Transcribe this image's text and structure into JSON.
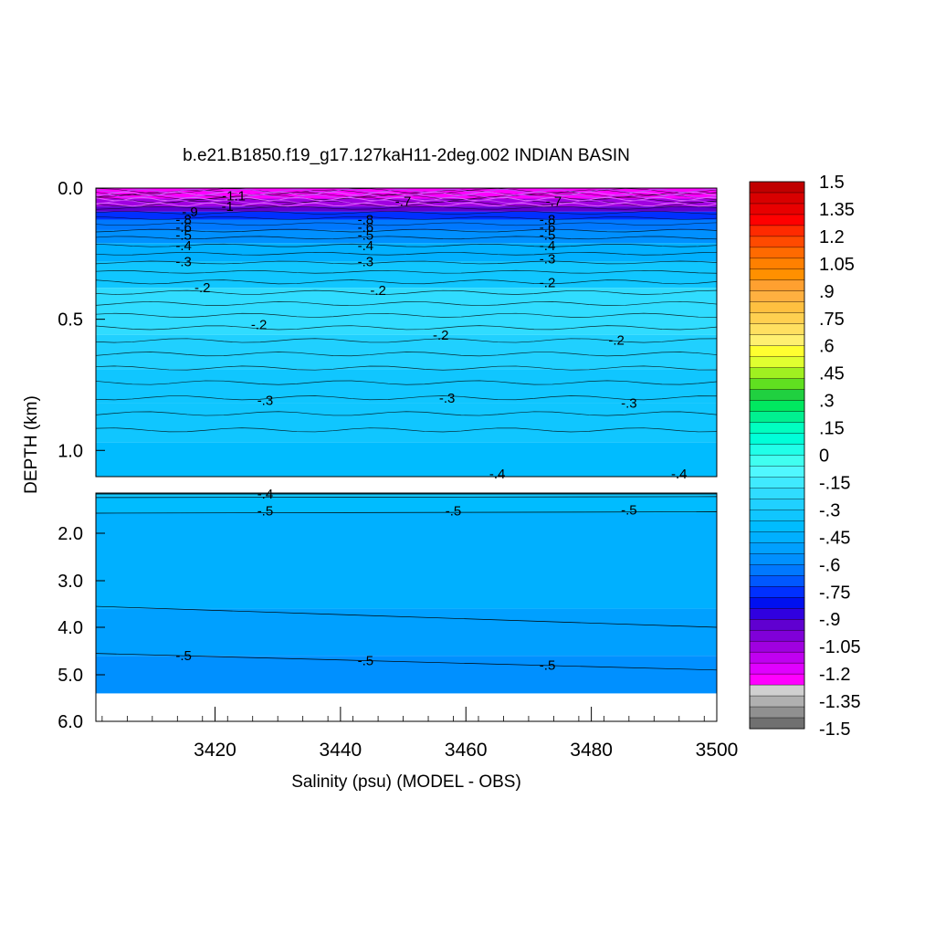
{
  "chart_data": {
    "type": "heatmap",
    "title": "b.e21.B1850.f19_g17.127kaH11-2deg.002 INDIAN BASIN",
    "xlabel": "Salinity (psu) (MODEL - OBS)",
    "ylabel": "DEPTH (km)",
    "xlim": [
      3401,
      3500
    ],
    "x_ticks": [
      "3420",
      "3440",
      "3460",
      "3480",
      "3500"
    ],
    "upper_panel": {
      "ylim": [
        0.0,
        1.1
      ],
      "y_ticks": [
        "0.0",
        "0.5",
        "1.0"
      ],
      "depth_bands": [
        {
          "depth": 0.0,
          "value": -1.2
        },
        {
          "depth": 0.04,
          "value": -1.05
        },
        {
          "depth": 0.07,
          "value": -0.9
        },
        {
          "depth": 0.09,
          "value": -0.75
        },
        {
          "depth": 0.12,
          "value": -0.65
        },
        {
          "depth": 0.16,
          "value": -0.55
        },
        {
          "depth": 0.21,
          "value": -0.45
        },
        {
          "depth": 0.28,
          "value": -0.3
        },
        {
          "depth": 0.38,
          "value": -0.2
        },
        {
          "depth": 0.56,
          "value": -0.25
        },
        {
          "depth": 0.69,
          "value": -0.3
        },
        {
          "depth": 0.82,
          "value": -0.35
        },
        {
          "depth": 0.97,
          "value": -0.4
        }
      ],
      "contour_labels": [
        {
          "text": "-1.1",
          "x": 3423,
          "depth": 0.03
        },
        {
          "text": "-1",
          "x": 3422,
          "depth": 0.07
        },
        {
          "text": "-.9",
          "x": 3416,
          "depth": 0.09
        },
        {
          "text": "-.7",
          "x": 3450,
          "depth": 0.05
        },
        {
          "text": "-.7",
          "x": 3474,
          "depth": 0.05
        },
        {
          "text": "-.8",
          "x": 3415,
          "depth": 0.12
        },
        {
          "text": "-.8",
          "x": 3444,
          "depth": 0.12
        },
        {
          "text": "-.8",
          "x": 3473,
          "depth": 0.12
        },
        {
          "text": "-.6",
          "x": 3415,
          "depth": 0.15
        },
        {
          "text": "-.6",
          "x": 3444,
          "depth": 0.15
        },
        {
          "text": "-.6",
          "x": 3473,
          "depth": 0.15
        },
        {
          "text": "-.5",
          "x": 3415,
          "depth": 0.18
        },
        {
          "text": "-.5",
          "x": 3444,
          "depth": 0.18
        },
        {
          "text": "-.5",
          "x": 3473,
          "depth": 0.18
        },
        {
          "text": "-.4",
          "x": 3415,
          "depth": 0.22
        },
        {
          "text": "-.4",
          "x": 3444,
          "depth": 0.22
        },
        {
          "text": "-.4",
          "x": 3473,
          "depth": 0.22
        },
        {
          "text": "-.3",
          "x": 3415,
          "depth": 0.28
        },
        {
          "text": "-.3",
          "x": 3444,
          "depth": 0.28
        },
        {
          "text": "-.3",
          "x": 3473,
          "depth": 0.27
        },
        {
          "text": "-.2",
          "x": 3418,
          "depth": 0.38
        },
        {
          "text": "-.2",
          "x": 3446,
          "depth": 0.39
        },
        {
          "text": "-.2",
          "x": 3473,
          "depth": 0.36
        },
        {
          "text": "-.2",
          "x": 3427,
          "depth": 0.52
        },
        {
          "text": "-.2",
          "x": 3456,
          "depth": 0.56
        },
        {
          "text": "-.2",
          "x": 3484,
          "depth": 0.58
        },
        {
          "text": "-.3",
          "x": 3428,
          "depth": 0.81
        },
        {
          "text": "-.3",
          "x": 3457,
          "depth": 0.8
        },
        {
          "text": "-.3",
          "x": 3486,
          "depth": 0.82
        },
        {
          "text": "-.4",
          "x": 3465,
          "depth": 1.09
        },
        {
          "text": "-.4",
          "x": 3494,
          "depth": 1.09
        }
      ]
    },
    "lower_panel": {
      "ylim": [
        1.1,
        6.0
      ],
      "y_ticks": [
        "2.0",
        "3.0",
        "4.0",
        "5.0",
        "6.0"
      ],
      "y_tick_values": [
        2.0,
        3.0,
        4.0,
        5.0,
        6.0
      ],
      "depth_bands": [
        {
          "depth": 1.1,
          "value": -0.35
        },
        {
          "depth": 1.18,
          "value": -0.4
        },
        {
          "depth": 1.55,
          "value": -0.45
        },
        {
          "depth": 3.6,
          "value": -0.5
        },
        {
          "depth": 4.6,
          "value": -0.55
        }
      ],
      "seafloor_depth": 5.4,
      "contour_labels": [
        {
          "text": "-.4",
          "x": 3428,
          "depth": 1.12
        },
        {
          "text": "-.5",
          "x": 3428,
          "depth": 1.5
        },
        {
          "text": "-.5",
          "x": 3458,
          "depth": 1.5
        },
        {
          "text": "-.5",
          "x": 3486,
          "depth": 1.48
        },
        {
          "text": "-.5",
          "x": 3415,
          "depth": 4.6
        },
        {
          "text": "-.5",
          "x": 3444,
          "depth": 4.7
        },
        {
          "text": "-.5",
          "x": 3473,
          "depth": 4.8
        }
      ]
    },
    "colorbar": {
      "labels": [
        "1.5",
        "1.35",
        "1.2",
        "1.05",
        ".9",
        ".75",
        ".6",
        ".45",
        ".3",
        ".15",
        "0",
        "-.15",
        "-.3",
        "-.45",
        "-.6",
        "-.75",
        "-.9",
        "-1.05",
        "-1.2",
        "-1.35",
        "-1.5"
      ],
      "colors": [
        "#c00000",
        "#d80000",
        "#e80000",
        "#ff0000",
        "#ff2a00",
        "#ff4a00",
        "#ff6a00",
        "#ff8000",
        "#ff9000",
        "#ffa030",
        "#ffb040",
        "#ffc040",
        "#ffd050",
        "#ffe060",
        "#fff070",
        "#ffff30",
        "#e0ff30",
        "#a0f020",
        "#60e020",
        "#20d040",
        "#00e860",
        "#00f090",
        "#00ffc0",
        "#00ffd8",
        "#20ffe8",
        "#40fff0",
        "#50f8ff",
        "#40eaff",
        "#30dcff",
        "#20d0ff",
        "#10c6ff",
        "#00bcff",
        "#00b0ff",
        "#00a0ff",
        "#0090ff",
        "#0078ff",
        "#0058ff",
        "#0030ff",
        "#0010f0",
        "#3000e0",
        "#6000d0",
        "#8000d8",
        "#a000e0",
        "#c000f0",
        "#e000ff",
        "#ff00ff",
        "#d0d0d0",
        "#b0b0b0",
        "#909090",
        "#707070"
      ]
    }
  }
}
